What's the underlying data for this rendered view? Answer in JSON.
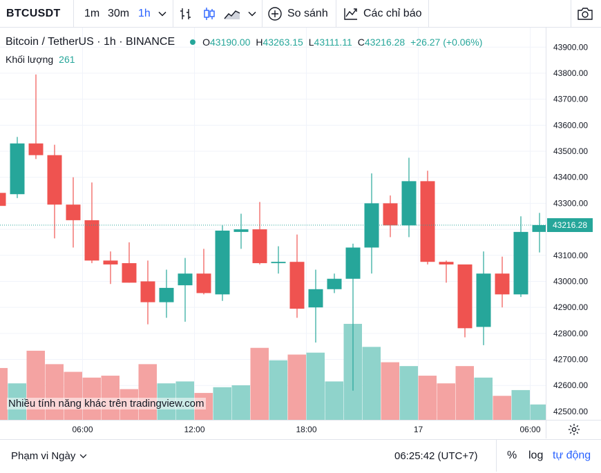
{
  "toolbar": {
    "symbol": "BTCUSDT",
    "intervals": [
      "1m",
      "30m",
      "1h"
    ],
    "active_interval": "1h",
    "compare_label": "So sánh",
    "indicators_label": "Các chỉ báo"
  },
  "legend": {
    "title": "Bitcoin / TetherUS · 1h · BINANCE",
    "open_label": "O",
    "open": "43190.00",
    "high_label": "H",
    "high": "43263.15",
    "low_label": "L",
    "low": "43111.11",
    "close_label": "C",
    "close": "43216.28",
    "change": "+26.27 (+0.06%)",
    "volume_label": "Khối lượng",
    "volume_value": "261"
  },
  "watermark": "Nhiều tính năng khác trên tradingview.com",
  "current_price_label": "43216.28",
  "bottom": {
    "range_label": "Phạm vi Ngày",
    "clock": "06:25:42 (UTC+7)",
    "percent": "%",
    "log": "log",
    "auto": "tự động"
  },
  "colors": {
    "up": "#26a69a",
    "down": "#ef5350",
    "vol_up": "#8fd3cb",
    "vol_down": "#f4a3a2",
    "accent": "#2962ff"
  },
  "chart_data": {
    "type": "candlestick",
    "y_ticks": [
      "43900.00",
      "43800.00",
      "43700.00",
      "43600.00",
      "43500.00",
      "43400.00",
      "43300.00",
      "43200.00",
      "43100.00",
      "43000.00",
      "42900.00",
      "42800.00",
      "42700.00",
      "42600.00",
      "42500.00"
    ],
    "ylim": [
      42468,
      43975
    ],
    "x_ticks": [
      {
        "index": 4.5,
        "label": "06:00"
      },
      {
        "index": 10.5,
        "label": "12:00"
      },
      {
        "index": 16.5,
        "label": "18:00"
      },
      {
        "index": 22.5,
        "label": "17"
      },
      {
        "index": 28.5,
        "label": "06:00"
      }
    ],
    "candles": [
      {
        "o": 43340,
        "h": 43370,
        "l": 43290,
        "c": 43290
      },
      {
        "o": 43335,
        "h": 43555,
        "l": 43320,
        "c": 43530
      },
      {
        "o": 43530,
        "h": 43795,
        "l": 43470,
        "c": 43485
      },
      {
        "o": 43485,
        "h": 43525,
        "l": 43165,
        "c": 43295
      },
      {
        "o": 43295,
        "h": 43400,
        "l": 43130,
        "c": 43235
      },
      {
        "o": 43235,
        "h": 43380,
        "l": 43070,
        "c": 43080
      },
      {
        "o": 43080,
        "h": 43115,
        "l": 42990,
        "c": 43065
      },
      {
        "o": 43070,
        "h": 43150,
        "l": 42995,
        "c": 42995
      },
      {
        "o": 43000,
        "h": 43080,
        "l": 42835,
        "c": 42920
      },
      {
        "o": 42920,
        "h": 43045,
        "l": 42860,
        "c": 42975
      },
      {
        "o": 42985,
        "h": 43090,
        "l": 42845,
        "c": 43030
      },
      {
        "o": 43030,
        "h": 43125,
        "l": 42950,
        "c": 42955
      },
      {
        "o": 42950,
        "h": 43215,
        "l": 42925,
        "c": 43195
      },
      {
        "o": 43190,
        "h": 43260,
        "l": 43125,
        "c": 43200
      },
      {
        "o": 43200,
        "h": 43305,
        "l": 43065,
        "c": 43070
      },
      {
        "o": 43070,
        "h": 43135,
        "l": 43030,
        "c": 43075
      },
      {
        "o": 43075,
        "h": 43180,
        "l": 42860,
        "c": 42895
      },
      {
        "o": 42900,
        "h": 43045,
        "l": 42765,
        "c": 42970
      },
      {
        "o": 42970,
        "h": 43030,
        "l": 42955,
        "c": 43010
      },
      {
        "o": 43010,
        "h": 43145,
        "l": 42580,
        "c": 43130
      },
      {
        "o": 43130,
        "h": 43415,
        "l": 43030,
        "c": 43300
      },
      {
        "o": 43300,
        "h": 43330,
        "l": 43170,
        "c": 43215
      },
      {
        "o": 43215,
        "h": 43475,
        "l": 43170,
        "c": 43385
      },
      {
        "o": 43385,
        "h": 43425,
        "l": 43065,
        "c": 43075
      },
      {
        "o": 43075,
        "h": 43080,
        "l": 42995,
        "c": 43065
      },
      {
        "o": 43065,
        "h": 43060,
        "l": 42785,
        "c": 42820
      },
      {
        "o": 42825,
        "h": 43115,
        "l": 42755,
        "c": 43030
      },
      {
        "o": 43030,
        "h": 43095,
        "l": 42900,
        "c": 42950
      },
      {
        "o": 42950,
        "h": 43250,
        "l": 42940,
        "c": 43190
      },
      {
        "o": 43190,
        "h": 43263.15,
        "l": 43111.11,
        "c": 43216.28
      }
    ],
    "volume": [
      {
        "v": 0.54,
        "up": false
      },
      {
        "v": 0.38,
        "up": true
      },
      {
        "v": 0.72,
        "up": false
      },
      {
        "v": 0.58,
        "up": false
      },
      {
        "v": 0.5,
        "up": false
      },
      {
        "v": 0.44,
        "up": false
      },
      {
        "v": 0.46,
        "up": false
      },
      {
        "v": 0.32,
        "up": false
      },
      {
        "v": 0.58,
        "up": false
      },
      {
        "v": 0.38,
        "up": true
      },
      {
        "v": 0.4,
        "up": true
      },
      {
        "v": 0.28,
        "up": false
      },
      {
        "v": 0.34,
        "up": true
      },
      {
        "v": 0.36,
        "up": true
      },
      {
        "v": 0.75,
        "up": false
      },
      {
        "v": 0.62,
        "up": true
      },
      {
        "v": 0.68,
        "up": false
      },
      {
        "v": 0.7,
        "up": true
      },
      {
        "v": 0.4,
        "up": true
      },
      {
        "v": 1.0,
        "up": true
      },
      {
        "v": 0.76,
        "up": true
      },
      {
        "v": 0.6,
        "up": false
      },
      {
        "v": 0.56,
        "up": true
      },
      {
        "v": 0.46,
        "up": false
      },
      {
        "v": 0.38,
        "up": false
      },
      {
        "v": 0.56,
        "up": false
      },
      {
        "v": 0.44,
        "up": true
      },
      {
        "v": 0.25,
        "up": false
      },
      {
        "v": 0.31,
        "up": true
      },
      {
        "v": 0.16,
        "up": true
      }
    ]
  }
}
